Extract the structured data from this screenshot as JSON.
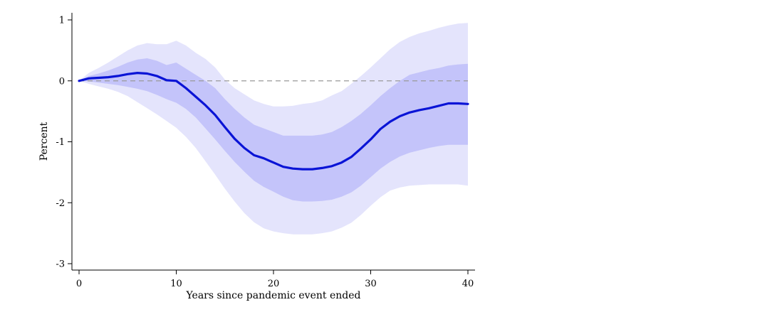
{
  "chart_data": {
    "type": "line",
    "title": "",
    "xlabel": "Years since pandemic event ended",
    "ylabel": "Percent",
    "xlim": [
      0,
      40
    ],
    "ylim": [
      -3,
      1.1
    ],
    "xticks": [
      0,
      10,
      20,
      30,
      40
    ],
    "yticks": [
      -3,
      -2,
      -1,
      0,
      1
    ],
    "reference_line": {
      "y": 0,
      "style": "dashed",
      "color": "#999999"
    },
    "grid": false,
    "legend": "none",
    "colors": {
      "line": "#0a14d6",
      "inner_band": "#c4c4fa",
      "outer_band": "#e4e4fc"
    },
    "x": [
      0,
      1,
      2,
      3,
      4,
      5,
      6,
      7,
      8,
      9,
      10,
      11,
      12,
      13,
      14,
      15,
      16,
      17,
      18,
      19,
      20,
      21,
      22,
      23,
      24,
      25,
      26,
      27,
      28,
      29,
      30,
      31,
      32,
      33,
      34,
      35,
      36,
      37,
      38,
      39,
      40
    ],
    "estimate": [
      0,
      0.04,
      0.05,
      0.06,
      0.08,
      0.11,
      0.13,
      0.12,
      0.08,
      0.01,
      0,
      -0.12,
      -0.26,
      -0.4,
      -0.56,
      -0.76,
      -0.95,
      -1.1,
      -1.22,
      -1.27,
      -1.34,
      -1.41,
      -1.44,
      -1.45,
      -1.45,
      -1.43,
      -1.4,
      -1.34,
      -1.25,
      -1.11,
      -0.96,
      -0.79,
      -0.67,
      -0.58,
      -0.52,
      -0.48,
      -0.45,
      -0.41,
      -0.37,
      -0.37,
      -0.38
    ],
    "inner_upper": [
      0,
      0.08,
      0.12,
      0.17,
      0.23,
      0.3,
      0.35,
      0.37,
      0.33,
      0.26,
      0.3,
      0.2,
      0.1,
      0,
      -0.12,
      -0.3,
      -0.46,
      -0.6,
      -0.72,
      -0.78,
      -0.84,
      -0.9,
      -0.9,
      -0.9,
      -0.9,
      -0.88,
      -0.84,
      -0.76,
      -0.66,
      -0.54,
      -0.4,
      -0.25,
      -0.12,
      0,
      0.1,
      0.14,
      0.18,
      0.21,
      0.25,
      0.27,
      0.28
    ],
    "inner_lower": [
      0,
      -0.01,
      -0.03,
      -0.05,
      -0.07,
      -0.1,
      -0.13,
      -0.17,
      -0.23,
      -0.3,
      -0.36,
      -0.46,
      -0.6,
      -0.78,
      -0.96,
      -1.15,
      -1.33,
      -1.49,
      -1.64,
      -1.74,
      -1.82,
      -1.9,
      -1.96,
      -1.98,
      -1.98,
      -1.97,
      -1.95,
      -1.9,
      -1.83,
      -1.72,
      -1.58,
      -1.44,
      -1.33,
      -1.24,
      -1.18,
      -1.14,
      -1.1,
      -1.07,
      -1.05,
      -1.05,
      -1.05
    ],
    "outer_upper": [
      0,
      0.13,
      0.21,
      0.3,
      0.4,
      0.5,
      0.58,
      0.62,
      0.6,
      0.6,
      0.66,
      0.58,
      0.46,
      0.36,
      0.22,
      0.02,
      -0.12,
      -0.22,
      -0.32,
      -0.38,
      -0.42,
      -0.42,
      -0.41,
      -0.38,
      -0.36,
      -0.32,
      -0.24,
      -0.17,
      -0.05,
      0.08,
      0.22,
      0.37,
      0.52,
      0.64,
      0.72,
      0.78,
      0.82,
      0.87,
      0.91,
      0.94,
      0.95
    ],
    "outer_lower": [
      0,
      -0.05,
      -0.09,
      -0.13,
      -0.18,
      -0.25,
      -0.35,
      -0.45,
      -0.55,
      -0.66,
      -0.77,
      -0.92,
      -1.1,
      -1.32,
      -1.54,
      -1.77,
      -1.98,
      -2.17,
      -2.32,
      -2.42,
      -2.47,
      -2.5,
      -2.52,
      -2.52,
      -2.52,
      -2.5,
      -2.47,
      -2.41,
      -2.33,
      -2.2,
      -2.05,
      -1.91,
      -1.8,
      -1.75,
      -1.72,
      -1.71,
      -1.7,
      -1.7,
      -1.7,
      -1.7,
      -1.72
    ]
  }
}
